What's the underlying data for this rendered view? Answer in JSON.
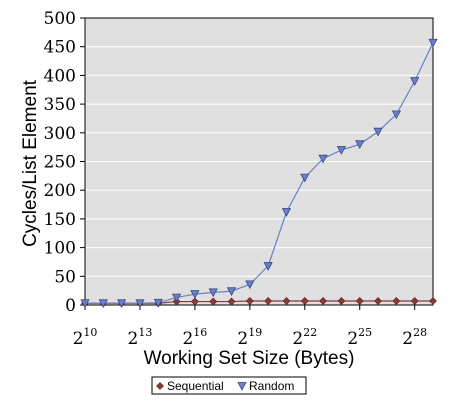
{
  "chart_data": {
    "type": "line",
    "title": "",
    "xlabel": "Working Set Size (Bytes)",
    "ylabel": "Cycles/List Element",
    "x_scale": "log2",
    "x": [
      1024,
      2048,
      4096,
      8192,
      16384,
      32768,
      65536,
      131072,
      262144,
      524288,
      1048576,
      2097152,
      4194304,
      8388608,
      16777216,
      33554432,
      67108864,
      134217728,
      268435456,
      536870912
    ],
    "xlim": [
      1024,
      536870912
    ],
    "ylim": [
      0,
      500
    ],
    "xticks": [
      {
        "base": "2",
        "exp": "10"
      },
      {
        "base": "2",
        "exp": "13"
      },
      {
        "base": "2",
        "exp": "16"
      },
      {
        "base": "2",
        "exp": "19"
      },
      {
        "base": "2",
        "exp": "22"
      },
      {
        "base": "2",
        "exp": "25"
      },
      {
        "base": "2",
        "exp": "28"
      }
    ],
    "yticks": [
      "0",
      "50",
      "100",
      "150",
      "200",
      "250",
      "300",
      "350",
      "400",
      "450",
      "500"
    ],
    "grid": "horizontal",
    "legend_position": "bottom",
    "series": [
      {
        "name": "Sequential",
        "color": "#8b3a3a",
        "marker": "diamond",
        "values": [
          3,
          3,
          3,
          3,
          3,
          6,
          6,
          6,
          6,
          7,
          7,
          7,
          7,
          7,
          7,
          7,
          7,
          7,
          7,
          7
        ]
      },
      {
        "name": "Random",
        "color": "#6b7fc9",
        "marker": "triangle-down",
        "values": [
          3,
          3,
          3,
          3,
          4,
          13,
          19,
          22,
          24,
          36,
          68,
          162,
          222,
          255,
          270,
          280,
          302,
          332,
          390,
          457
        ]
      }
    ]
  }
}
